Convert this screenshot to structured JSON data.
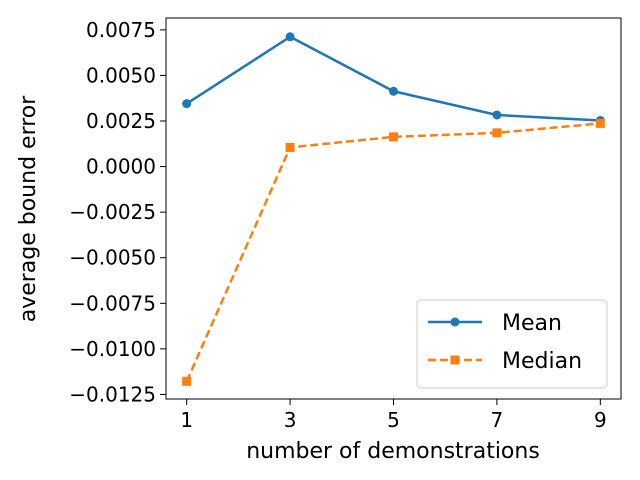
{
  "chart_data": {
    "type": "line",
    "x": [
      1,
      3,
      5,
      7,
      9
    ],
    "xticks": [
      "1",
      "3",
      "5",
      "7",
      "9"
    ],
    "yticks": [
      "0.0075",
      "0.0050",
      "0.0025",
      "0.0000",
      "−0.0025",
      "−0.0050",
      "−0.0075",
      "−0.0100",
      "−0.0125"
    ],
    "ytick_values": [
      0.0075,
      0.005,
      0.0025,
      0.0,
      -0.0025,
      -0.005,
      -0.0075,
      -0.01,
      -0.0125
    ],
    "xlabel": "number of demonstrations",
    "ylabel": "average bound error",
    "xlim": [
      0.6,
      9.4
    ],
    "ylim": [
      -0.01275,
      0.00815
    ],
    "grid": false,
    "legend_position": "lower-right",
    "series": [
      {
        "name": "Mean",
        "values": [
          0.00345,
          0.00712,
          0.00413,
          0.00283,
          0.00253
        ],
        "color": "#1f77b4",
        "marker": "circle",
        "linestyle": "solid"
      },
      {
        "name": "Median",
        "values": [
          -0.01178,
          0.00105,
          0.00163,
          0.00185,
          0.00237
        ],
        "color": "#ff7f0e",
        "marker": "square",
        "linestyle": "dashed"
      }
    ]
  }
}
